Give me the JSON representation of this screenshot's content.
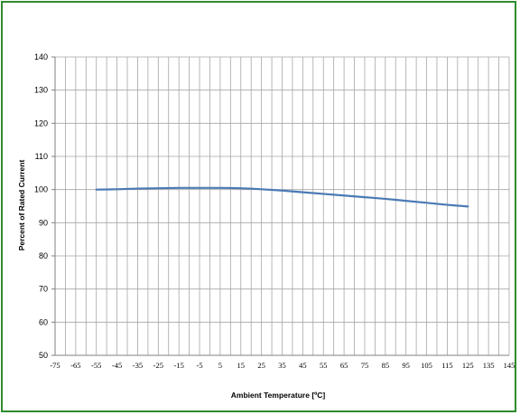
{
  "colors": {
    "frame": "#2e8b2e",
    "grid": "#a6a6a6",
    "axis": "#808080",
    "series": "#4a7ab5"
  },
  "chart_data": {
    "type": "line",
    "title": "",
    "xlabel": "Ambient Temperature [ºC]",
    "ylabel": "Percent of Rated Current",
    "xlim": [
      -75,
      145
    ],
    "ylim": [
      50,
      140
    ],
    "x_tick_step": 10,
    "x_minor_step": 5,
    "y_tick_step": 10,
    "grid": true,
    "x_ticks": [
      "-75",
      "-65",
      "-55",
      "-45",
      "-35",
      "-25",
      "-15",
      "-5",
      "5",
      "15",
      "25",
      "35",
      "45",
      "55",
      "65",
      "75",
      "85",
      "95",
      "105",
      "115",
      "125",
      "135",
      "145"
    ],
    "y_ticks": [
      "140",
      "130",
      "120",
      "110",
      "100",
      "90",
      "80",
      "70",
      "60",
      "50"
    ],
    "series": [
      {
        "x": [
          -55,
          -45,
          -35,
          -25,
          -15,
          -5,
          5,
          15,
          25,
          35,
          45,
          55,
          65,
          75,
          85,
          95,
          105,
          115,
          125
        ],
        "y": [
          100.0,
          100.1,
          100.3,
          100.4,
          100.5,
          100.5,
          100.5,
          100.4,
          100.1,
          99.7,
          99.2,
          98.7,
          98.2,
          97.7,
          97.2,
          96.6,
          96.0,
          95.4,
          94.9
        ]
      }
    ]
  }
}
